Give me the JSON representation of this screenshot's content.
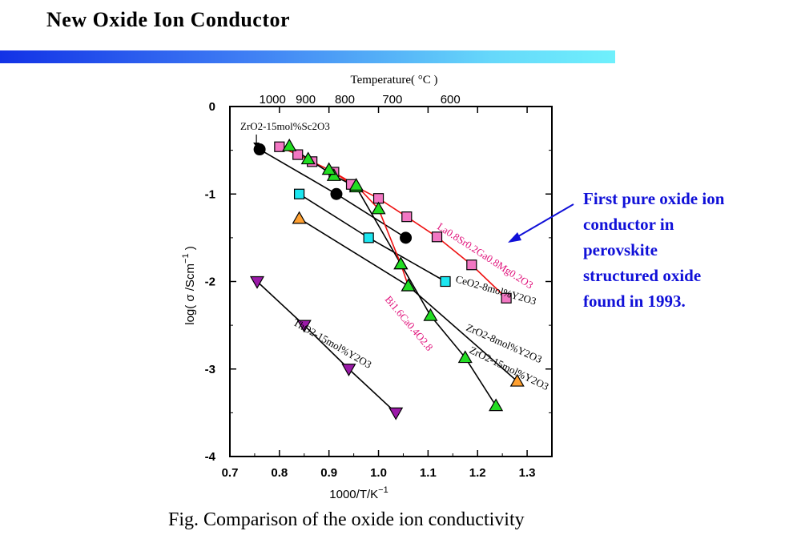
{
  "slide": {
    "title": "New Oxide Ion Conductor"
  },
  "annotation": {
    "lines": [
      "First pure oxide ion",
      "conductor in",
      "perovskite",
      "structured oxide",
      "found in 1993."
    ]
  },
  "caption": "Fig. Comparison of the oxide ion conductivity",
  "colors": {
    "pink_square": "#f277c3",
    "cyan_square": "#1ce6f0",
    "green_triangle": "#22dd22",
    "orange_triangle": "#ffa030",
    "purple_triangle": "#9b1aa8",
    "black_circle": "#000000",
    "red_line": "#ee1111",
    "series_label_red": "#e0107a",
    "annotation": "#1010d8"
  },
  "chart_data": {
    "type": "scatter",
    "xlabel": "1000/T/K",
    "xlabel_sup": "−1",
    "ylabel": "log( σ /Scm",
    "ylabel_sup": "−1",
    "ylabel_close": " )",
    "top_axis_label": "Temperature( °C )",
    "xlim": [
      0.7,
      1.35
    ],
    "ylim": [
      -4,
      0
    ],
    "x_ticks": [
      "0.7",
      "0.8",
      "0.9",
      "1.0",
      "1.1",
      "1.2",
      "1.3"
    ],
    "y_ticks": [
      "0",
      "-1",
      "-2",
      "-3",
      "-4"
    ],
    "top_ticks": [
      {
        "label": "1000",
        "x": 0.786
      },
      {
        "label": "900",
        "x": 0.853
      },
      {
        "label": "800",
        "x": 0.932
      },
      {
        "label": "700",
        "x": 1.028
      },
      {
        "label": "600",
        "x": 1.145
      }
    ],
    "series": [
      {
        "name": "ZrO2-15mol%Sc2O3",
        "marker": "circle",
        "color_key": "black_circle",
        "line_color_key": "black_circle",
        "x": [
          0.76,
          0.915,
          1.055
        ],
        "y": [
          -0.49,
          -1.0,
          -1.5
        ]
      },
      {
        "name": "La0.8Sr0.2Ga0.8Mg0.2O3",
        "marker": "square",
        "color_key": "pink_square",
        "line_color_key": "red_line",
        "x": [
          0.8,
          0.837,
          0.866,
          0.91,
          0.945,
          1.0,
          1.057,
          1.118,
          1.188,
          1.258
        ],
        "y": [
          -0.46,
          -0.55,
          -0.63,
          -0.75,
          -0.89,
          -1.05,
          -1.26,
          -1.49,
          -1.81,
          -2.19
        ]
      },
      {
        "name": "CeO2-8mol%Y2O3",
        "marker": "square",
        "color_key": "cyan_square",
        "line_color_key": "black_circle",
        "x": [
          0.84,
          0.98,
          1.135
        ],
        "y": [
          -1.0,
          -1.5,
          -2.0
        ]
      },
      {
        "name": "ZrO2-8mol%Y2O3",
        "marker": "triangle-up",
        "color_key": "orange_triangle",
        "line_color_key": "black_circle",
        "x": [
          0.84,
          1.06,
          1.28
        ],
        "y": [
          -1.28,
          -2.05,
          -3.14
        ]
      },
      {
        "name": "ZrO2-15mol%Y2O3",
        "marker": "triangle-up",
        "color_key": "green_triangle",
        "line_color_key": "black_circle",
        "x": [
          0.82,
          0.858,
          0.91,
          0.955,
          1.045,
          1.105,
          1.175,
          1.237
        ],
        "y": [
          -0.45,
          -0.6,
          -0.79,
          -0.92,
          -1.8,
          -2.39,
          -2.87,
          -3.42
        ]
      },
      {
        "name": "Bi1.6Ca0.4O2.8",
        "marker": "triangle-up",
        "color_key": "green_triangle",
        "line_color_key": "red_line",
        "x": [
          0.9,
          0.955,
          1.0,
          1.045,
          1.06
        ],
        "y": [
          -0.72,
          -0.9,
          -1.17,
          -1.8,
          -2.05
        ]
      },
      {
        "name": "ThO2-15mol%Y2O3",
        "marker": "triangle-down",
        "color_key": "purple_triangle",
        "line_color_key": "black_circle",
        "x": [
          0.755,
          0.85,
          0.94,
          1.035
        ],
        "y": [
          -2.0,
          -2.5,
          -3.0,
          -3.5
        ]
      }
    ],
    "labels": [
      {
        "text": "ZrO2-15mol%Sc2O3",
        "anchor_series": 0
      },
      {
        "text": "La0.8Sr0.2Ga0.8Mg0.2O3",
        "anchor_series": 1
      },
      {
        "text": "CeO2-8mol%Y2O3",
        "anchor_series": 2
      },
      {
        "text": "ZrO2-8mol%Y2O3",
        "anchor_series": 3
      },
      {
        "text": "ZrO2-15mol%Y2O3",
        "anchor_series": 4
      },
      {
        "text": "Bi1.6Ca0.4O2.8",
        "anchor_series": 5
      },
      {
        "text": "ThO2-15mol%Y2O3",
        "anchor_series": 6
      }
    ]
  }
}
